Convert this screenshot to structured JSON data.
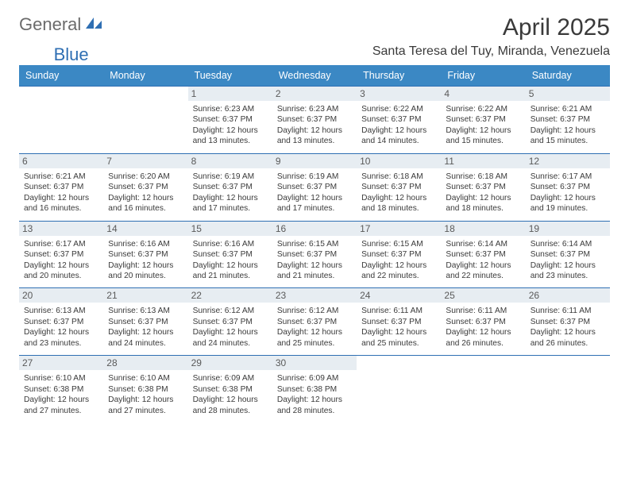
{
  "brand": {
    "word1": "General",
    "word2": "Blue",
    "word1_color": "#6b6b6b",
    "word2_color": "#2f6fb3"
  },
  "title": "April 2025",
  "location": "Santa Teresa del Tuy, Miranda, Venezuela",
  "colors": {
    "header_bg": "#3b88c4",
    "header_text": "#ffffff",
    "row_divider": "#2f6fb3",
    "daynum_bg": "#e7edf2",
    "daynum_color": "#5a5a5a",
    "info_color": "#3a3a3a",
    "title_color": "#3a3a3a"
  },
  "day_headers": [
    "Sunday",
    "Monday",
    "Tuesday",
    "Wednesday",
    "Thursday",
    "Friday",
    "Saturday"
  ],
  "labels": {
    "sunrise": "Sunrise:",
    "sunset": "Sunset:",
    "daylight": "Daylight:"
  },
  "first_weekday_index": 2,
  "days": [
    {
      "n": 1,
      "rise": "6:23 AM",
      "set": "6:37 PM",
      "dl": "12 hours and 13 minutes."
    },
    {
      "n": 2,
      "rise": "6:23 AM",
      "set": "6:37 PM",
      "dl": "12 hours and 13 minutes."
    },
    {
      "n": 3,
      "rise": "6:22 AM",
      "set": "6:37 PM",
      "dl": "12 hours and 14 minutes."
    },
    {
      "n": 4,
      "rise": "6:22 AM",
      "set": "6:37 PM",
      "dl": "12 hours and 15 minutes."
    },
    {
      "n": 5,
      "rise": "6:21 AM",
      "set": "6:37 PM",
      "dl": "12 hours and 15 minutes."
    },
    {
      "n": 6,
      "rise": "6:21 AM",
      "set": "6:37 PM",
      "dl": "12 hours and 16 minutes."
    },
    {
      "n": 7,
      "rise": "6:20 AM",
      "set": "6:37 PM",
      "dl": "12 hours and 16 minutes."
    },
    {
      "n": 8,
      "rise": "6:19 AM",
      "set": "6:37 PM",
      "dl": "12 hours and 17 minutes."
    },
    {
      "n": 9,
      "rise": "6:19 AM",
      "set": "6:37 PM",
      "dl": "12 hours and 17 minutes."
    },
    {
      "n": 10,
      "rise": "6:18 AM",
      "set": "6:37 PM",
      "dl": "12 hours and 18 minutes."
    },
    {
      "n": 11,
      "rise": "6:18 AM",
      "set": "6:37 PM",
      "dl": "12 hours and 18 minutes."
    },
    {
      "n": 12,
      "rise": "6:17 AM",
      "set": "6:37 PM",
      "dl": "12 hours and 19 minutes."
    },
    {
      "n": 13,
      "rise": "6:17 AM",
      "set": "6:37 PM",
      "dl": "12 hours and 20 minutes."
    },
    {
      "n": 14,
      "rise": "6:16 AM",
      "set": "6:37 PM",
      "dl": "12 hours and 20 minutes."
    },
    {
      "n": 15,
      "rise": "6:16 AM",
      "set": "6:37 PM",
      "dl": "12 hours and 21 minutes."
    },
    {
      "n": 16,
      "rise": "6:15 AM",
      "set": "6:37 PM",
      "dl": "12 hours and 21 minutes."
    },
    {
      "n": 17,
      "rise": "6:15 AM",
      "set": "6:37 PM",
      "dl": "12 hours and 22 minutes."
    },
    {
      "n": 18,
      "rise": "6:14 AM",
      "set": "6:37 PM",
      "dl": "12 hours and 22 minutes."
    },
    {
      "n": 19,
      "rise": "6:14 AM",
      "set": "6:37 PM",
      "dl": "12 hours and 23 minutes."
    },
    {
      "n": 20,
      "rise": "6:13 AM",
      "set": "6:37 PM",
      "dl": "12 hours and 23 minutes."
    },
    {
      "n": 21,
      "rise": "6:13 AM",
      "set": "6:37 PM",
      "dl": "12 hours and 24 minutes."
    },
    {
      "n": 22,
      "rise": "6:12 AM",
      "set": "6:37 PM",
      "dl": "12 hours and 24 minutes."
    },
    {
      "n": 23,
      "rise": "6:12 AM",
      "set": "6:37 PM",
      "dl": "12 hours and 25 minutes."
    },
    {
      "n": 24,
      "rise": "6:11 AM",
      "set": "6:37 PM",
      "dl": "12 hours and 25 minutes."
    },
    {
      "n": 25,
      "rise": "6:11 AM",
      "set": "6:37 PM",
      "dl": "12 hours and 26 minutes."
    },
    {
      "n": 26,
      "rise": "6:11 AM",
      "set": "6:37 PM",
      "dl": "12 hours and 26 minutes."
    },
    {
      "n": 27,
      "rise": "6:10 AM",
      "set": "6:38 PM",
      "dl": "12 hours and 27 minutes."
    },
    {
      "n": 28,
      "rise": "6:10 AM",
      "set": "6:38 PM",
      "dl": "12 hours and 27 minutes."
    },
    {
      "n": 29,
      "rise": "6:09 AM",
      "set": "6:38 PM",
      "dl": "12 hours and 28 minutes."
    },
    {
      "n": 30,
      "rise": "6:09 AM",
      "set": "6:38 PM",
      "dl": "12 hours and 28 minutes."
    }
  ]
}
